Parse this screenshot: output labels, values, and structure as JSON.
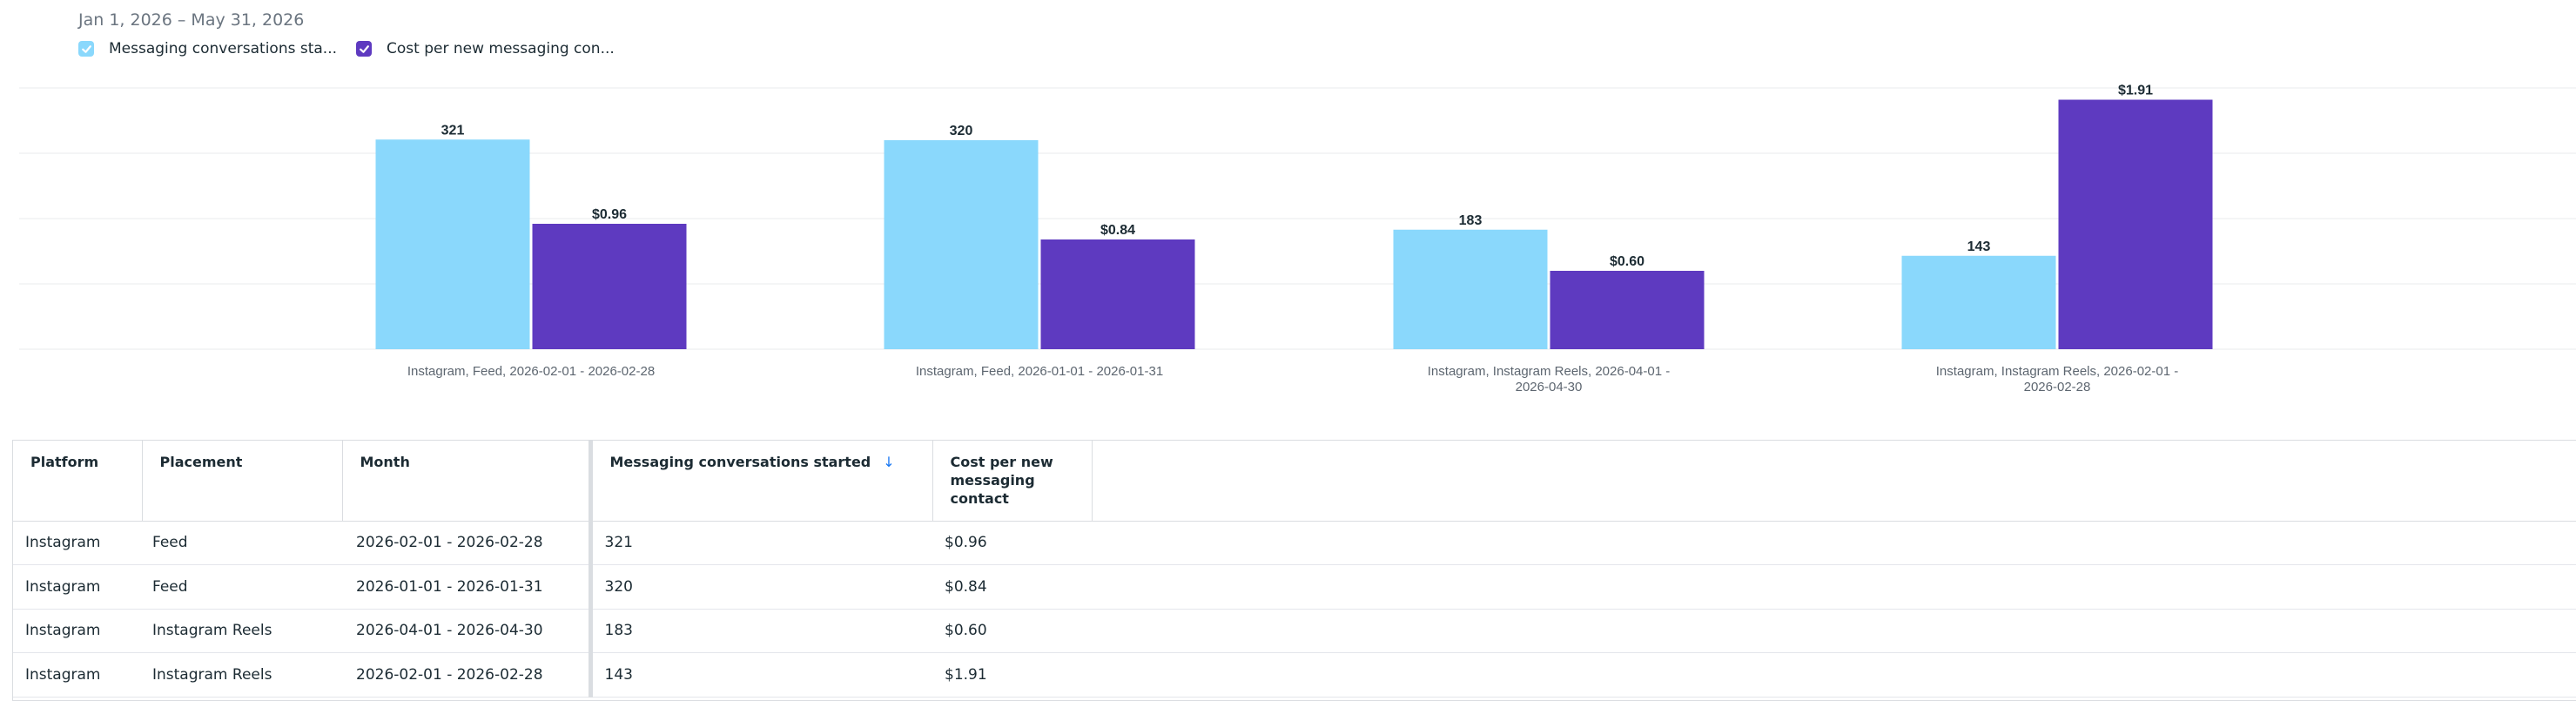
{
  "header": {
    "date_range": "Jan 1, 2026 – May 31, 2026"
  },
  "legend": [
    {
      "label": "Messaging conversations sta...",
      "color": "#8ad8fc",
      "checked": true,
      "icon": "check-icon"
    },
    {
      "label": "Cost per new messaging con...",
      "color": "#5e3ac0",
      "checked": true,
      "icon": "check-icon"
    }
  ],
  "chart_data": {
    "type": "bar",
    "categories": [
      [
        "Instagram, Feed, 2026-02-01 - 2026-02-28"
      ],
      [
        "Instagram, Feed, 2026-01-01 - 2026-01-31"
      ],
      [
        "Instagram, Instagram Reels, 2026-04-01 -",
        "2026-04-30"
      ],
      [
        "Instagram, Instagram Reels, 2026-02-01 -",
        "2026-02-28"
      ]
    ],
    "series": [
      {
        "values": [
          321,
          320,
          183,
          143
        ],
        "labels": [
          "321",
          "320",
          "183",
          "143"
        ],
        "color": "#8ad8fc",
        "ymax": 400
      },
      {
        "values": [
          0.96,
          0.84,
          0.6,
          1.91
        ],
        "labels": [
          "$0.96",
          "$0.84",
          "$0.60",
          "$1.91"
        ],
        "color": "#5e3ac0",
        "ymax": 2.0
      }
    ],
    "grid": true
  },
  "table": {
    "headers": [
      "Platform",
      "Placement",
      "Month",
      "Messaging conversations started",
      "Cost per new messaging contact"
    ],
    "sort_icon": "arrow-down-icon",
    "sort_glyph": "↓",
    "rows": [
      [
        "Instagram",
        "Feed",
        "2026-02-01 - 2026-02-28",
        "321",
        "$0.96"
      ],
      [
        "Instagram",
        "Feed",
        "2026-01-01 - 2026-01-31",
        "320",
        "$0.84"
      ],
      [
        "Instagram",
        "Instagram Reels",
        "2026-04-01 - 2026-04-30",
        "183",
        "$0.60"
      ],
      [
        "Instagram",
        "Instagram Reels",
        "2026-02-01 - 2026-02-28",
        "143",
        "$1.91"
      ]
    ]
  }
}
